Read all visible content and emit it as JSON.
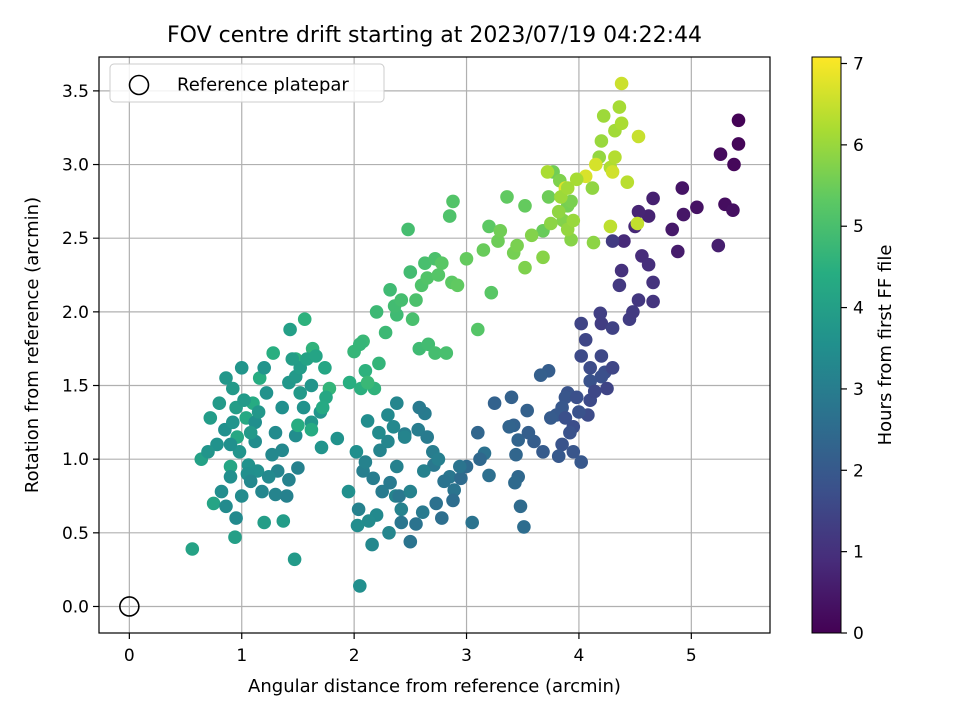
{
  "chart_data": {
    "type": "scatter",
    "title": "FOV centre drift starting at 2023/07/19 04:22:44",
    "xlabel": "Angular distance from reference (arcmin)",
    "ylabel": "Rotation from reference (arcmin)",
    "xlim": [
      -0.27,
      5.7
    ],
    "ylim": [
      -0.18,
      3.73
    ],
    "xticks": [
      {
        "value": 0,
        "label": "0"
      },
      {
        "value": 1,
        "label": "1"
      },
      {
        "value": 2,
        "label": "2"
      },
      {
        "value": 3,
        "label": "3"
      },
      {
        "value": 4,
        "label": "4"
      },
      {
        "value": 5,
        "label": "5"
      }
    ],
    "yticks": [
      {
        "value": 0.0,
        "label": "0.0"
      },
      {
        "value": 0.5,
        "label": "0.5"
      },
      {
        "value": 1.0,
        "label": "1.0"
      },
      {
        "value": 1.5,
        "label": "1.5"
      },
      {
        "value": 2.0,
        "label": "2.0"
      },
      {
        "value": 2.5,
        "label": "2.5"
      },
      {
        "value": 3.0,
        "label": "3.0"
      },
      {
        "value": 3.5,
        "label": "3.5"
      }
    ],
    "grid": true,
    "legend": {
      "placement": "upper-left",
      "entries": [
        {
          "label": "Reference platepar",
          "marker": "hollow-circle"
        }
      ]
    },
    "reference_point": {
      "x": 0,
      "y": 0
    },
    "colorbar": {
      "label": "Hours from first FF file",
      "range": [
        0,
        7.08
      ],
      "colormap": "viridis",
      "ticks": [
        {
          "value": 0,
          "label": "0"
        },
        {
          "value": 1,
          "label": "1"
        },
        {
          "value": 2,
          "label": "2"
        },
        {
          "value": 3,
          "label": "3"
        },
        {
          "value": 4,
          "label": "4"
        },
        {
          "value": 5,
          "label": "5"
        },
        {
          "value": 6,
          "label": "6"
        },
        {
          "value": 7,
          "label": "7"
        }
      ]
    },
    "points": [
      [
        5.42,
        3.3,
        0.05
      ],
      [
        5.42,
        3.14,
        0.1
      ],
      [
        5.38,
        3.0,
        0.15
      ],
      [
        5.26,
        3.07,
        0.2
      ],
      [
        5.3,
        2.73,
        0.25
      ],
      [
        5.37,
        2.69,
        0.3
      ],
      [
        5.05,
        2.71,
        0.35
      ],
      [
        4.92,
        2.84,
        0.4
      ],
      [
        4.93,
        2.66,
        0.45
      ],
      [
        4.83,
        2.56,
        0.5
      ],
      [
        4.88,
        2.41,
        0.55
      ],
      [
        5.24,
        2.45,
        0.6
      ],
      [
        4.66,
        2.77,
        0.65
      ],
      [
        4.62,
        2.65,
        0.7
      ],
      [
        4.53,
        2.68,
        0.75
      ],
      [
        4.5,
        2.58,
        0.8
      ],
      [
        4.4,
        2.48,
        0.85
      ],
      [
        4.56,
        2.38,
        0.9
      ],
      [
        4.62,
        2.32,
        0.95
      ],
      [
        4.38,
        2.28,
        1.0
      ],
      [
        4.66,
        2.2,
        1.05
      ],
      [
        4.66,
        2.07,
        1.1
      ],
      [
        4.53,
        2.08,
        1.15
      ],
      [
        4.36,
        2.18,
        1.2
      ],
      [
        4.3,
        2.48,
        1.25
      ],
      [
        4.2,
        1.92,
        1.3
      ],
      [
        4.19,
        1.99,
        1.35
      ],
      [
        4.3,
        1.89,
        1.4
      ],
      [
        4.02,
        1.92,
        1.45
      ],
      [
        4.06,
        1.81,
        1.5
      ],
      [
        4.2,
        1.7,
        1.55
      ],
      [
        4.02,
        1.7,
        1.6
      ],
      [
        4.1,
        1.62,
        1.65
      ],
      [
        4.23,
        1.59,
        1.7
      ],
      [
        4.2,
        1.56,
        1.75
      ],
      [
        4.1,
        1.53,
        1.8
      ],
      [
        3.9,
        1.45,
        1.85
      ],
      [
        3.88,
        1.42,
        1.9
      ],
      [
        3.85,
        1.35,
        1.95
      ],
      [
        3.8,
        1.3,
        2.0
      ],
      [
        3.75,
        1.28,
        2.05
      ],
      [
        3.73,
        1.6,
        2.1
      ],
      [
        3.66,
        1.57,
        2.15
      ],
      [
        3.54,
        1.33,
        2.2
      ],
      [
        3.42,
        1.23,
        2.25
      ],
      [
        3.46,
        1.13,
        2.3
      ],
      [
        3.44,
        1.03,
        2.35
      ],
      [
        3.46,
        0.88,
        2.4
      ],
      [
        3.43,
        0.84,
        2.45
      ],
      [
        3.48,
        0.68,
        2.5
      ],
      [
        3.51,
        0.54,
        2.55
      ],
      [
        3.2,
        0.89,
        2.6
      ],
      [
        3.16,
        1.04,
        2.65
      ],
      [
        3.05,
        0.57,
        2.7
      ],
      [
        2.89,
        0.79,
        2.75
      ],
      [
        2.85,
        0.88,
        2.8
      ],
      [
        2.71,
        0.96,
        2.85
      ],
      [
        2.61,
        0.64,
        2.9
      ],
      [
        2.63,
        1.31,
        2.95
      ],
      [
        2.57,
        1.2,
        3.0
      ],
      [
        2.45,
        1.17,
        3.05
      ],
      [
        2.38,
        0.95,
        3.1
      ],
      [
        2.42,
        0.66,
        3.15
      ],
      [
        2.37,
        0.75,
        3.2
      ],
      [
        2.31,
        0.5,
        3.25
      ],
      [
        2.16,
        0.42,
        3.3
      ],
      [
        2.2,
        0.62,
        3.35
      ],
      [
        2.13,
        0.58,
        3.4
      ],
      [
        2.03,
        0.55,
        3.45
      ],
      [
        2.05,
        0.14,
        3.5
      ],
      [
        1.95,
        0.78,
        3.55
      ],
      [
        1.85,
        1.14,
        3.6
      ],
      [
        1.71,
        1.08,
        3.65
      ],
      [
        1.7,
        1.32,
        3.7
      ],
      [
        1.62,
        1.25,
        3.75
      ],
      [
        1.52,
        1.45,
        3.8
      ],
      [
        1.47,
        0.32,
        3.85
      ],
      [
        1.37,
        0.58,
        3.9
      ],
      [
        1.2,
        0.57,
        3.95
      ],
      [
        0.94,
        0.47,
        4.0
      ],
      [
        0.64,
        1.0,
        4.05
      ],
      [
        0.56,
        0.39,
        4.1
      ],
      [
        0.75,
        0.7,
        4.15
      ],
      [
        0.9,
        0.95,
        4.2
      ],
      [
        0.96,
        1.15,
        4.25
      ],
      [
        1.04,
        1.28,
        4.3
      ],
      [
        1.1,
        1.38,
        4.35
      ],
      [
        1.16,
        1.55,
        4.4
      ],
      [
        1.28,
        1.72,
        4.45
      ],
      [
        1.48,
        1.68,
        4.5
      ],
      [
        1.56,
        1.95,
        4.55
      ],
      [
        1.63,
        1.75,
        4.6
      ],
      [
        1.78,
        1.48,
        4.65
      ],
      [
        2.0,
        1.73,
        4.7
      ],
      [
        2.08,
        1.8,
        4.75
      ],
      [
        2.2,
        2.0,
        4.8
      ],
      [
        2.32,
        2.15,
        4.85
      ],
      [
        2.5,
        2.27,
        4.9
      ],
      [
        2.48,
        2.56,
        4.95
      ],
      [
        2.63,
        2.33,
        5.0
      ],
      [
        2.72,
        2.36,
        5.05
      ],
      [
        2.85,
        2.65,
        5.1
      ],
      [
        2.88,
        2.75,
        5.15
      ],
      [
        3.1,
        1.88,
        5.2
      ],
      [
        3.22,
        2.13,
        5.25
      ],
      [
        3.2,
        2.58,
        5.3
      ],
      [
        3.36,
        2.78,
        5.35
      ],
      [
        3.52,
        2.72,
        5.4
      ],
      [
        3.68,
        2.55,
        5.45
      ],
      [
        3.73,
        2.78,
        5.5
      ],
      [
        3.77,
        2.95,
        5.55
      ],
      [
        3.9,
        2.72,
        5.6
      ],
      [
        3.93,
        2.75,
        5.65
      ],
      [
        3.83,
        2.89,
        5.7
      ],
      [
        3.86,
        2.62,
        5.75
      ],
      [
        3.93,
        2.49,
        5.8
      ],
      [
        4.13,
        2.47,
        5.85
      ],
      [
        4.12,
        2.84,
        5.9
      ],
      [
        4.18,
        3.05,
        5.95
      ],
      [
        4.2,
        3.16,
        6.0
      ],
      [
        4.22,
        3.33,
        6.05
      ],
      [
        4.32,
        3.23,
        6.1
      ],
      [
        4.36,
        3.39,
        6.15
      ],
      [
        4.38,
        3.28,
        6.2
      ],
      [
        4.28,
        2.98,
        6.25
      ],
      [
        4.32,
        3.05,
        6.3
      ],
      [
        4.43,
        2.88,
        6.35
      ],
      [
        4.28,
        2.58,
        6.4
      ],
      [
        4.52,
        2.6,
        6.45
      ],
      [
        4.53,
        3.19,
        6.5
      ],
      [
        4.38,
        3.55,
        6.55
      ],
      [
        4.3,
        2.95,
        6.6
      ],
      [
        4.15,
        3.0,
        6.65
      ],
      [
        4.06,
        2.92,
        6.7
      ],
      [
        3.88,
        2.84,
        6.75
      ],
      [
        0.72,
        1.28,
        3.9
      ],
      [
        0.8,
        1.38,
        3.85
      ],
      [
        0.86,
        1.55,
        3.75
      ],
      [
        0.92,
        1.48,
        3.8
      ],
      [
        1.0,
        1.62,
        3.7
      ],
      [
        1.2,
        1.62,
        3.65
      ],
      [
        1.22,
        1.45,
        3.6
      ],
      [
        0.85,
        1.2,
        3.55
      ],
      [
        0.78,
        1.1,
        3.6
      ],
      [
        0.7,
        1.05,
        3.7
      ],
      [
        0.98,
        1.05,
        3.65
      ],
      [
        1.06,
        0.96,
        3.6
      ],
      [
        1.14,
        0.92,
        3.55
      ],
      [
        1.05,
        0.9,
        3.5
      ],
      [
        0.9,
        0.88,
        3.5
      ],
      [
        0.82,
        0.78,
        3.45
      ],
      [
        0.86,
        0.68,
        3.4
      ],
      [
        0.95,
        0.6,
        3.35
      ],
      [
        1.08,
        0.85,
        3.3
      ],
      [
        1.18,
        0.78,
        3.25
      ],
      [
        1.3,
        0.76,
        3.2
      ],
      [
        1.32,
        0.92,
        3.2
      ],
      [
        1.42,
        0.86,
        3.15
      ],
      [
        1.4,
        0.75,
        3.1
      ],
      [
        1.5,
        0.94,
        3.1
      ],
      [
        1.27,
        1.03,
        3.3
      ],
      [
        1.36,
        1.06,
        3.3
      ],
      [
        1.3,
        1.18,
        3.4
      ],
      [
        1.12,
        1.12,
        3.45
      ],
      [
        1.12,
        1.25,
        3.5
      ],
      [
        1.48,
        1.16,
        3.45
      ],
      [
        1.55,
        1.35,
        3.6
      ],
      [
        1.62,
        1.5,
        3.7
      ],
      [
        1.36,
        1.35,
        3.55
      ],
      [
        1.42,
        1.52,
        3.75
      ],
      [
        1.48,
        1.56,
        3.8
      ],
      [
        1.52,
        1.62,
        3.9
      ],
      [
        1.45,
        1.68,
        3.95
      ],
      [
        1.43,
        1.88,
        4.0
      ],
      [
        1.58,
        1.68,
        4.1
      ],
      [
        1.66,
        1.7,
        4.15
      ],
      [
        1.74,
        1.62,
        4.2
      ],
      [
        1.75,
        1.42,
        4.25
      ],
      [
        1.72,
        1.35,
        4.3
      ],
      [
        1.62,
        1.2,
        4.35
      ],
      [
        1.5,
        1.23,
        4.4
      ],
      [
        1.96,
        1.52,
        4.45
      ],
      [
        2.06,
        1.48,
        4.5
      ],
      [
        2.1,
        1.6,
        4.55
      ],
      [
        2.18,
        1.48,
        4.6
      ],
      [
        2.22,
        1.65,
        4.65
      ],
      [
        2.05,
        1.78,
        4.7
      ],
      [
        2.12,
        1.52,
        4.75
      ],
      [
        2.28,
        1.86,
        4.8
      ],
      [
        2.38,
        1.98,
        4.85
      ],
      [
        2.36,
        2.04,
        4.9
      ],
      [
        2.42,
        2.08,
        4.95
      ],
      [
        2.52,
        1.95,
        5.0
      ],
      [
        2.58,
        1.75,
        4.85
      ],
      [
        2.66,
        1.78,
        4.9
      ],
      [
        2.72,
        1.72,
        4.95
      ],
      [
        2.82,
        1.72,
        5.0
      ],
      [
        2.55,
        2.08,
        5.05
      ],
      [
        2.6,
        2.18,
        5.1
      ],
      [
        2.65,
        2.23,
        5.15
      ],
      [
        2.75,
        2.25,
        5.2
      ],
      [
        2.78,
        2.33,
        5.25
      ],
      [
        2.87,
        2.2,
        5.3
      ],
      [
        2.92,
        2.18,
        5.35
      ],
      [
        3.0,
        2.36,
        5.4
      ],
      [
        3.15,
        2.42,
        5.45
      ],
      [
        3.28,
        2.48,
        5.5
      ],
      [
        3.3,
        2.55,
        5.55
      ],
      [
        3.42,
        2.4,
        5.6
      ],
      [
        3.45,
        2.45,
        5.65
      ],
      [
        3.52,
        2.3,
        5.7
      ],
      [
        3.58,
        2.52,
        5.75
      ],
      [
        3.68,
        2.37,
        5.8
      ],
      [
        3.75,
        2.6,
        5.85
      ],
      [
        3.82,
        2.68,
        5.9
      ],
      [
        3.9,
        2.56,
        5.95
      ],
      [
        3.95,
        2.62,
        6.0
      ],
      [
        3.84,
        2.78,
        6.05
      ],
      [
        3.9,
        2.84,
        6.1
      ],
      [
        3.98,
        2.9,
        6.15
      ],
      [
        3.72,
        2.95,
        6.2
      ],
      [
        4.1,
        1.4,
        1.6
      ],
      [
        4.14,
        1.46,
        1.55
      ],
      [
        4.08,
        1.3,
        1.65
      ],
      [
        3.95,
        1.22,
        1.7
      ],
      [
        3.88,
        1.28,
        1.75
      ],
      [
        3.92,
        1.18,
        1.8
      ],
      [
        3.85,
        1.1,
        1.85
      ],
      [
        3.95,
        1.05,
        1.9
      ],
      [
        4.02,
        0.98,
        1.95
      ],
      [
        3.82,
        1.02,
        2.0
      ],
      [
        3.68,
        1.05,
        2.05
      ],
      [
        3.6,
        1.12,
        2.1
      ],
      [
        3.55,
        1.18,
        2.15
      ],
      [
        3.4,
        1.42,
        2.2
      ],
      [
        3.25,
        1.38,
        2.25
      ],
      [
        3.38,
        1.22,
        2.3
      ],
      [
        3.1,
        1.18,
        2.35
      ],
      [
        3.12,
        1.0,
        2.4
      ],
      [
        3.0,
        0.95,
        2.45
      ],
      [
        2.95,
        0.87,
        2.5
      ],
      [
        2.88,
        0.72,
        2.55
      ],
      [
        2.78,
        0.6,
        2.6
      ],
      [
        2.73,
        0.7,
        2.65
      ],
      [
        2.55,
        0.56,
        2.7
      ],
      [
        2.5,
        0.44,
        2.75
      ],
      [
        2.42,
        0.57,
        2.8
      ],
      [
        2.4,
        0.75,
        2.85
      ],
      [
        2.32,
        0.84,
        2.9
      ],
      [
        2.25,
        0.78,
        2.95
      ],
      [
        2.17,
        0.87,
        3.0
      ],
      [
        2.08,
        0.92,
        3.05
      ],
      [
        2.04,
        0.66,
        3.1
      ],
      [
        2.1,
        0.98,
        3.15
      ],
      [
        2.23,
        1.06,
        3.2
      ],
      [
        2.3,
        1.12,
        3.25
      ],
      [
        2.35,
        1.22,
        3.3
      ],
      [
        2.3,
        1.3,
        3.35
      ],
      [
        2.22,
        1.18,
        3.4
      ],
      [
        2.12,
        1.26,
        3.45
      ],
      [
        2.02,
        1.05,
        3.5
      ],
      [
        2.58,
        1.35,
        2.9
      ],
      [
        2.65,
        1.15,
        2.95
      ],
      [
        2.7,
        1.05,
        3.0
      ],
      [
        2.75,
        1.0,
        3.05
      ],
      [
        2.62,
        0.92,
        3.1
      ],
      [
        2.5,
        0.78,
        3.15
      ],
      [
        2.45,
        1.15,
        3.2
      ],
      [
        2.38,
        1.38,
        3.25
      ],
      [
        2.8,
        0.85,
        2.7
      ],
      [
        2.94,
        0.95,
        2.75
      ],
      [
        4.45,
        1.95,
        1.3
      ],
      [
        4.48,
        2.0,
        1.25
      ],
      [
        4.3,
        1.62,
        1.5
      ],
      [
        4.25,
        1.48,
        1.45
      ],
      [
        4.0,
        1.32,
        1.8
      ],
      [
        3.98,
        1.42,
        1.75
      ],
      [
        0.95,
        1.35,
        3.95
      ],
      [
        1.02,
        1.4,
        3.85
      ],
      [
        1.08,
        1.18,
        3.8
      ],
      [
        1.15,
        1.32,
        3.75
      ],
      [
        0.9,
        1.1,
        3.55
      ],
      [
        0.92,
        1.25,
        3.65
      ],
      [
        1.0,
        0.75,
        3.4
      ],
      [
        1.24,
        0.88,
        3.35
      ]
    ]
  }
}
